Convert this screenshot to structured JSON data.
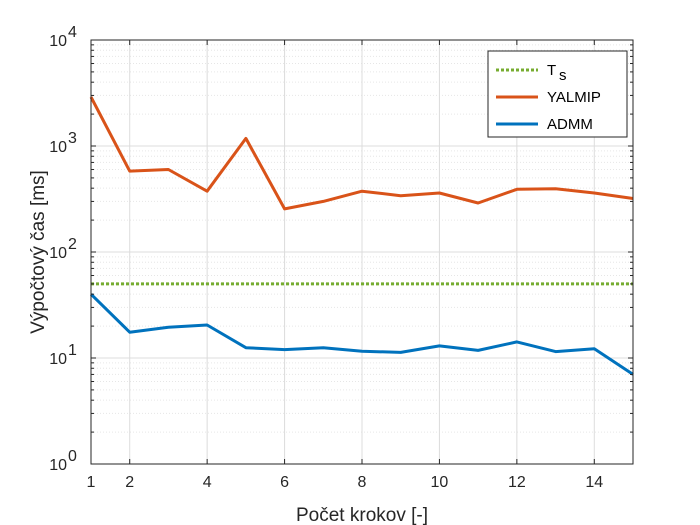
{
  "chart_data": {
    "type": "line",
    "xlabel": "Počet krokov [-]",
    "ylabel": "Výpočtový čas [ms]",
    "xlim": [
      1,
      15
    ],
    "ylim": [
      1,
      10000
    ],
    "yscale": "log",
    "grid": true,
    "minor_grid": true,
    "legend_position": "top-right",
    "x_ticks": [
      1,
      2,
      4,
      6,
      8,
      10,
      12,
      14
    ],
    "y_ticks": [
      {
        "value": 1,
        "base": "10",
        "exp": "0"
      },
      {
        "value": 10,
        "base": "10",
        "exp": "1"
      },
      {
        "value": 100,
        "base": "10",
        "exp": "2"
      },
      {
        "value": 1000,
        "base": "10",
        "exp": "3"
      },
      {
        "value": 10000,
        "base": "10",
        "exp": "4"
      }
    ],
    "x": [
      1,
      2,
      3,
      4,
      5,
      6,
      7,
      8,
      9,
      10,
      11,
      12,
      13,
      14,
      15
    ],
    "series": [
      {
        "name_main": "T",
        "name_sub": "s",
        "color": "#77AC30",
        "style": "dotted",
        "values": [
          50,
          50,
          50,
          50,
          50,
          50,
          50,
          50,
          50,
          50,
          50,
          50,
          50,
          50,
          50
        ]
      },
      {
        "name_main": "YALMIP",
        "name_sub": "",
        "color": "#D95319",
        "style": "solid",
        "values": [
          2900,
          580,
          600,
          375,
          1180,
          255,
          300,
          375,
          340,
          360,
          290,
          390,
          395,
          360,
          320
        ]
      },
      {
        "name_main": "ADMM",
        "name_sub": "",
        "color": "#0072BD",
        "style": "solid",
        "values": [
          40,
          17.5,
          19.5,
          20.5,
          12.5,
          12,
          12.5,
          11.6,
          11.3,
          13,
          11.8,
          14.2,
          11.5,
          12.2,
          7
        ]
      }
    ]
  }
}
